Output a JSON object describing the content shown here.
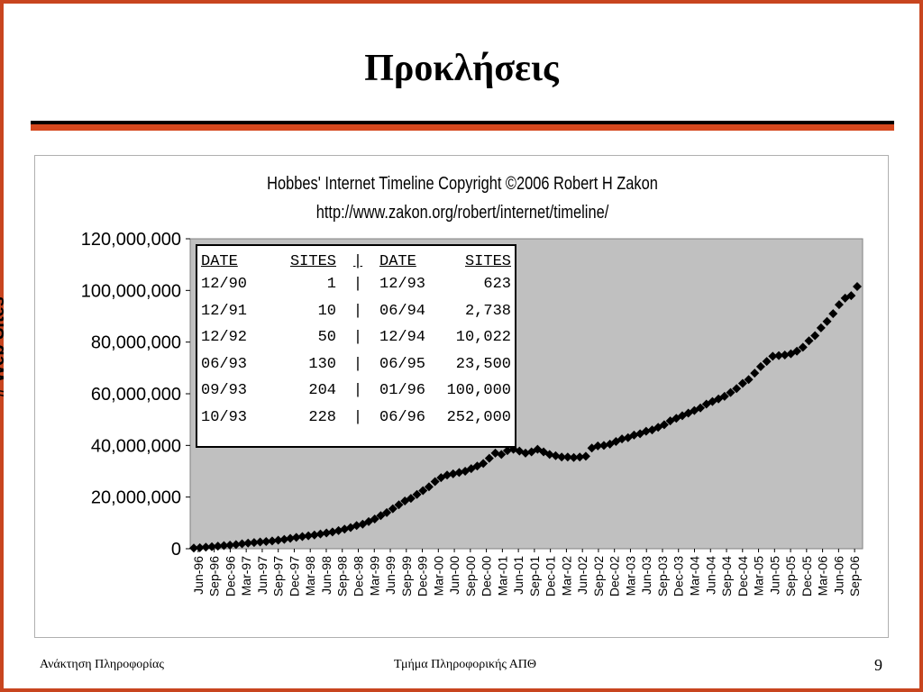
{
  "slide": {
    "title": "Προκλήσεις",
    "footer_left": "Ανάκτηση Πληροφορίας",
    "footer_center": "Τμήμα Πληροφορικής ΑΠΘ",
    "page_number": "9",
    "border_color": "#c8451f",
    "rule_colors": [
      "#000000",
      "#d4471d"
    ]
  },
  "chart_data": {
    "type": "scatter",
    "title": "Hobbes' Internet Timeline Copyright ©2006 Robert H Zakon",
    "subtitle": "http://www.zakon.org/robert/internet/timeline/",
    "ylabel": "# Web Sites",
    "xlabel": "",
    "ylim": [
      0,
      120000000
    ],
    "y_ticks": [
      "0",
      "20,000,000",
      "40,000,000",
      "60,000,000",
      "80,000,000",
      "100,000,000",
      "120,000,000"
    ],
    "x_tick_labels": [
      "Jun-96",
      "Sep-96",
      "Dec-96",
      "Mar-97",
      "Jun-97",
      "Sep-97",
      "Dec-97",
      "Mar-98",
      "Jun-98",
      "Sep-98",
      "Dec-98",
      "Mar-99",
      "Jun-99",
      "Sep-99",
      "Dec-99",
      "Mar-00",
      "Jun-00",
      "Sep-00",
      "Dec-00",
      "Mar-01",
      "Jun-01",
      "Sep-01",
      "Dec-01",
      "Mar-02",
      "Jun-02",
      "Sep-02",
      "Dec-02",
      "Mar-03",
      "Jun-03",
      "Sep-03",
      "Dec-03",
      "Mar-04",
      "Jun-04",
      "Sep-04",
      "Dec-04",
      "Mar-05",
      "Jun-05",
      "Sep-05",
      "Dec-05",
      "Mar-06",
      "Jun-06",
      "Sep-06"
    ],
    "plot_background": "#c0c0c0",
    "marker_color": "#000000",
    "marker": "diamond",
    "grid": false,
    "series": [
      {
        "values": [
          0.25,
          0.4,
          0.6,
          0.8,
          1.0,
          1.2,
          1.4,
          1.6,
          1.9,
          2.2,
          2.4,
          2.6,
          2.8,
          3.0,
          3.3,
          3.6,
          4.0,
          4.4,
          4.7,
          5.0,
          5.3,
          5.7,
          6.1,
          6.5,
          7.0,
          7.6,
          8.2,
          9.0,
          9.5,
          10.5,
          11.5,
          12.8,
          14.0,
          15.5,
          17.0,
          18.5,
          19.5,
          21.0,
          22.5,
          24.0,
          26.0,
          27.5,
          28.5,
          29.0,
          29.5,
          30.0,
          31.0,
          32.0,
          33.0,
          35.0,
          37.0,
          36.5,
          38.0,
          38.5,
          37.8,
          37.0,
          37.5,
          38.5,
          37.5,
          36.5,
          36.0,
          35.5,
          35.5,
          35.3,
          35.5,
          35.8,
          39.0,
          39.8,
          40.0,
          40.5,
          41.5,
          42.5,
          43.0,
          44.0,
          44.5,
          45.5,
          46.0,
          47.0,
          48.0,
          49.5,
          50.5,
          51.5,
          52.5,
          53.5,
          54.5,
          56.0,
          57.0,
          58.0,
          59.0,
          60.5,
          62.0,
          64.0,
          65.5,
          68.0,
          70.5,
          72.5,
          74.5,
          74.8,
          75.0,
          75.5,
          76.5,
          78.0,
          80.5,
          82.5,
          85.5,
          88.0,
          91.0,
          94.5,
          97.0,
          98.0,
          101.5
        ]
      }
    ],
    "value_scale_note": "values in millions of web sites, Jun-96 to Oct-06"
  },
  "table": {
    "headers": [
      "DATE",
      "SITES",
      "|",
      "DATE",
      "SITES"
    ],
    "rows": [
      [
        "12/90",
        "1",
        "|",
        "12/93",
        "623"
      ],
      [
        "12/91",
        "10",
        "|",
        "06/94",
        "2,738"
      ],
      [
        "12/92",
        "50",
        "|",
        "12/94",
        "10,022"
      ],
      [
        "06/93",
        "130",
        "|",
        "06/95",
        "23,500"
      ],
      [
        "09/93",
        "204",
        "|",
        "01/96",
        "100,000"
      ],
      [
        "10/93",
        "228",
        "|",
        "06/96",
        "252,000"
      ]
    ]
  }
}
